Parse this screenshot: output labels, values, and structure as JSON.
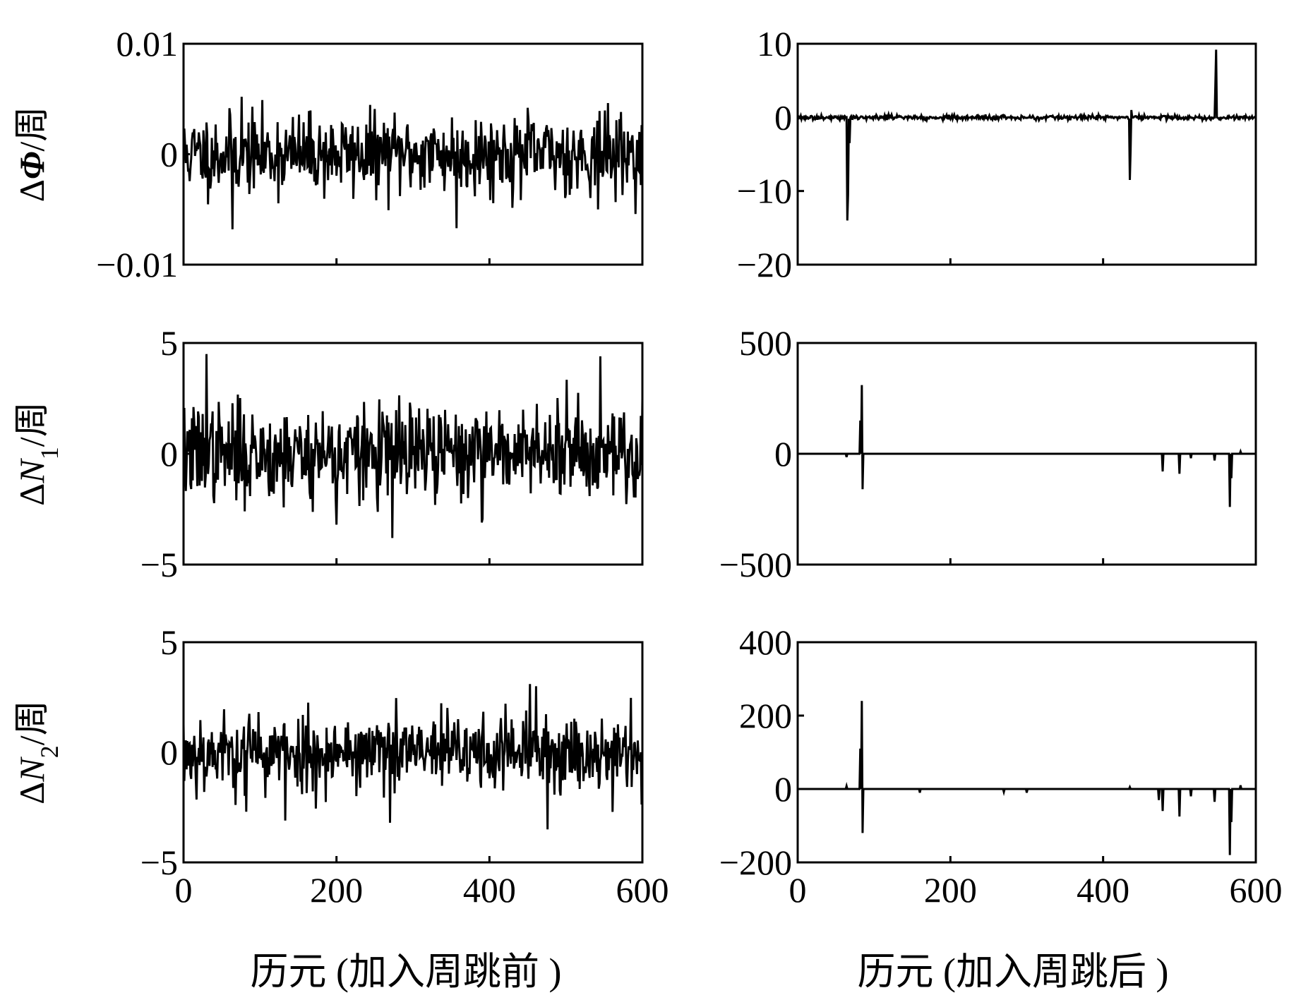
{
  "figure": {
    "left_xlabel": "历元 (加入周跳前 )",
    "right_xlabel": "历元 (加入周跳后 )"
  },
  "chart_data": [
    {
      "id": "left-top",
      "type": "line",
      "xlim": [
        0,
        600
      ],
      "xticks": [
        0,
        200,
        400,
        600
      ],
      "ylim": [
        -0.01,
        0.01
      ],
      "ytick_values": [
        -0.01,
        0,
        0.01
      ],
      "ytick_labels": [
        "−0.01",
        "0",
        "0.01"
      ],
      "ylabel_delta": "Δ",
      "ylabel_var": "Φ",
      "ylabel_sub": "",
      "ylabel_unit": "/周",
      "xlabel": "",
      "show_xtick_labels": false,
      "noise": {
        "sigma": 0.0018,
        "max": 0.0055,
        "min": -0.007,
        "seed": 11
      },
      "spikes": [
        {
          "x": 76,
          "y": 0.0052
        },
        {
          "x": 64,
          "y": -0.0068
        },
        {
          "x": 357,
          "y": -0.0067
        },
        {
          "x": 542,
          "y": -0.005
        }
      ]
    },
    {
      "id": "right-top",
      "type": "line",
      "xlim": [
        0,
        600
      ],
      "xticks": [
        0,
        200,
        400,
        600
      ],
      "ylim": [
        -20,
        10
      ],
      "ytick_values": [
        -20,
        -10,
        0,
        10
      ],
      "ytick_labels": [
        "−20",
        "−10",
        "0",
        "10"
      ],
      "ylabel_delta": "",
      "ylabel_var": "",
      "ylabel_sub": "",
      "ylabel_unit": "",
      "xlabel": "",
      "show_xtick_labels": false,
      "noise": {
        "sigma": 0.15,
        "max": 0.4,
        "min": -0.4,
        "seed": 23
      },
      "spikes": [
        {
          "x": 65,
          "y": -14
        },
        {
          "x": 66,
          "y": -10.5
        },
        {
          "x": 68,
          "y": -3.5
        },
        {
          "x": 435,
          "y": -8.5
        },
        {
          "x": 436,
          "y": -4.5
        },
        {
          "x": 437,
          "y": 1
        },
        {
          "x": 547,
          "y": 4.3
        },
        {
          "x": 548,
          "y": 9.2
        }
      ]
    },
    {
      "id": "left-mid",
      "type": "line",
      "xlim": [
        0,
        600
      ],
      "xticks": [
        0,
        200,
        400,
        600
      ],
      "ylim": [
        -5,
        5
      ],
      "ytick_values": [
        -5,
        0,
        5
      ],
      "ytick_labels": [
        "−5",
        "0",
        "5"
      ],
      "ylabel_delta": "Δ",
      "ylabel_var": "N",
      "ylabel_sub": "1",
      "ylabel_unit": "/周",
      "xlabel": "",
      "show_xtick_labels": false,
      "noise": {
        "sigma": 1.1,
        "max": 3.8,
        "min": -3.2,
        "seed": 37
      },
      "spikes": [
        {
          "x": 30,
          "y": 4.5
        },
        {
          "x": 273,
          "y": -3.8
        },
        {
          "x": 545,
          "y": 4.4
        },
        {
          "x": 200,
          "y": -3.2
        }
      ]
    },
    {
      "id": "right-mid",
      "type": "line",
      "xlim": [
        0,
        600
      ],
      "xticks": [
        0,
        200,
        400,
        600
      ],
      "ylim": [
        -500,
        500
      ],
      "ytick_values": [
        -500,
        0,
        500
      ],
      "ytick_labels": [
        "−500",
        "0",
        "500"
      ],
      "ylabel_delta": "",
      "ylabel_var": "",
      "ylabel_sub": "",
      "ylabel_unit": "",
      "xlabel": "",
      "show_xtick_labels": false,
      "noise": {
        "sigma": 0,
        "max": 0,
        "min": 0,
        "seed": 1
      },
      "spikes": [
        {
          "x": 64,
          "y": -15
        },
        {
          "x": 82,
          "y": 150
        },
        {
          "x": 84,
          "y": 310
        },
        {
          "x": 85,
          "y": -160
        },
        {
          "x": 478,
          "y": -80
        },
        {
          "x": 500,
          "y": -90
        },
        {
          "x": 515,
          "y": -20
        },
        {
          "x": 546,
          "y": -30
        },
        {
          "x": 566,
          "y": -240
        },
        {
          "x": 568,
          "y": -110
        },
        {
          "x": 580,
          "y": 10
        }
      ]
    },
    {
      "id": "left-bottom",
      "type": "line",
      "xlim": [
        0,
        600
      ],
      "xticks": [
        0,
        200,
        400,
        600
      ],
      "ylim": [
        -5,
        5
      ],
      "ytick_values": [
        -5,
        0,
        5
      ],
      "ytick_labels": [
        "−5",
        "0",
        "5"
      ],
      "ylabel_delta": "Δ",
      "ylabel_var": "N",
      "ylabel_sub": "2",
      "ylabel_unit": "/周",
      "xlabel": "",
      "show_xtick_labels": true,
      "noise": {
        "sigma": 0.9,
        "max": 2.9,
        "min": -3.0,
        "seed": 53
      },
      "spikes": [
        {
          "x": 133,
          "y": -3.1
        },
        {
          "x": 270,
          "y": -3.2
        },
        {
          "x": 453,
          "y": 3.1
        },
        {
          "x": 461,
          "y": 3.0
        },
        {
          "x": 476,
          "y": -3.5
        },
        {
          "x": 82,
          "y": -2.7
        }
      ]
    },
    {
      "id": "right-bottom",
      "type": "line",
      "xlim": [
        0,
        600
      ],
      "xticks": [
        0,
        200,
        400,
        600
      ],
      "ylim": [
        -200,
        400
      ],
      "ytick_values": [
        -200,
        0,
        200,
        400
      ],
      "ytick_labels": [
        "−200",
        "0",
        "200",
        "400"
      ],
      "ylabel_delta": "",
      "ylabel_var": "",
      "ylabel_sub": "",
      "ylabel_unit": "",
      "xlabel": "",
      "show_xtick_labels": true,
      "noise": {
        "sigma": 0,
        "max": 0,
        "min": 0,
        "seed": 1
      },
      "spikes": [
        {
          "x": 64,
          "y": 8
        },
        {
          "x": 82,
          "y": 110
        },
        {
          "x": 84,
          "y": 240
        },
        {
          "x": 85,
          "y": -120
        },
        {
          "x": 160,
          "y": -10
        },
        {
          "x": 270,
          "y": -8
        },
        {
          "x": 300,
          "y": -10
        },
        {
          "x": 435,
          "y": 5
        },
        {
          "x": 473,
          "y": -30
        },
        {
          "x": 478,
          "y": -60
        },
        {
          "x": 500,
          "y": -75
        },
        {
          "x": 515,
          "y": -20
        },
        {
          "x": 546,
          "y": -35
        },
        {
          "x": 566,
          "y": -180
        },
        {
          "x": 568,
          "y": -90
        },
        {
          "x": 580,
          "y": 10
        }
      ]
    }
  ]
}
